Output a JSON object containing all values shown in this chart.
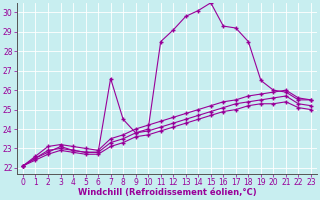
{
  "xlabel": "Windchill (Refroidissement éolien,°C)",
  "background_color": "#c8eef0",
  "line_color": "#990099",
  "grid_color": "#aadddd",
  "spine_color": "#555555",
  "xlim": [
    -0.5,
    23.5
  ],
  "ylim": [
    21.7,
    30.5
  ],
  "yticks": [
    22,
    23,
    24,
    25,
    26,
    27,
    28,
    29,
    30
  ],
  "xticks": [
    0,
    1,
    2,
    3,
    4,
    5,
    6,
    7,
    8,
    9,
    10,
    11,
    12,
    13,
    14,
    15,
    16,
    17,
    18,
    19,
    20,
    21,
    22,
    23
  ],
  "lines": [
    {
      "x": [
        0,
        1,
        2,
        3,
        4,
        5,
        6,
        7,
        8,
        9,
        10,
        11,
        12,
        13,
        14,
        15,
        16,
        17,
        18,
        19,
        20,
        21,
        22,
        23
      ],
      "y": [
        22.1,
        22.5,
        22.8,
        23.1,
        22.9,
        22.8,
        22.8,
        26.6,
        24.5,
        23.8,
        24.0,
        28.5,
        29.1,
        29.8,
        30.1,
        30.5,
        29.3,
        29.2,
        28.5,
        26.5,
        26.0,
        25.9,
        25.5,
        25.5
      ]
    },
    {
      "x": [
        0,
        1,
        2,
        3,
        4,
        5,
        6,
        7,
        8,
        9,
        10,
        11,
        12,
        13,
        14,
        15,
        16,
        17,
        18,
        19,
        20,
        21,
        22,
        23
      ],
      "y": [
        22.1,
        22.6,
        23.1,
        23.2,
        23.1,
        23.0,
        22.9,
        23.5,
        23.7,
        24.0,
        24.2,
        24.4,
        24.6,
        24.8,
        25.0,
        25.2,
        25.4,
        25.5,
        25.7,
        25.8,
        25.9,
        26.0,
        25.6,
        25.5
      ]
    },
    {
      "x": [
        0,
        1,
        2,
        3,
        4,
        5,
        6,
        7,
        8,
        9,
        10,
        11,
        12,
        13,
        14,
        15,
        16,
        17,
        18,
        19,
        20,
        21,
        22,
        23
      ],
      "y": [
        22.1,
        22.5,
        22.9,
        23.0,
        22.9,
        22.8,
        22.8,
        23.3,
        23.5,
        23.8,
        23.9,
        24.1,
        24.3,
        24.5,
        24.7,
        24.9,
        25.1,
        25.3,
        25.4,
        25.5,
        25.6,
        25.7,
        25.3,
        25.2
      ]
    },
    {
      "x": [
        0,
        1,
        2,
        3,
        4,
        5,
        6,
        7,
        8,
        9,
        10,
        11,
        12,
        13,
        14,
        15,
        16,
        17,
        18,
        19,
        20,
        21,
        22,
        23
      ],
      "y": [
        22.1,
        22.4,
        22.7,
        22.9,
        22.8,
        22.7,
        22.7,
        23.1,
        23.3,
        23.6,
        23.7,
        23.9,
        24.1,
        24.3,
        24.5,
        24.7,
        24.9,
        25.0,
        25.2,
        25.3,
        25.3,
        25.4,
        25.1,
        25.0
      ]
    }
  ],
  "marker": "+",
  "markersize": 3,
  "markeredgewidth": 1.0,
  "linewidth": 0.8,
  "tick_fontsize": 5.5,
  "xlabel_fontsize": 6.0
}
